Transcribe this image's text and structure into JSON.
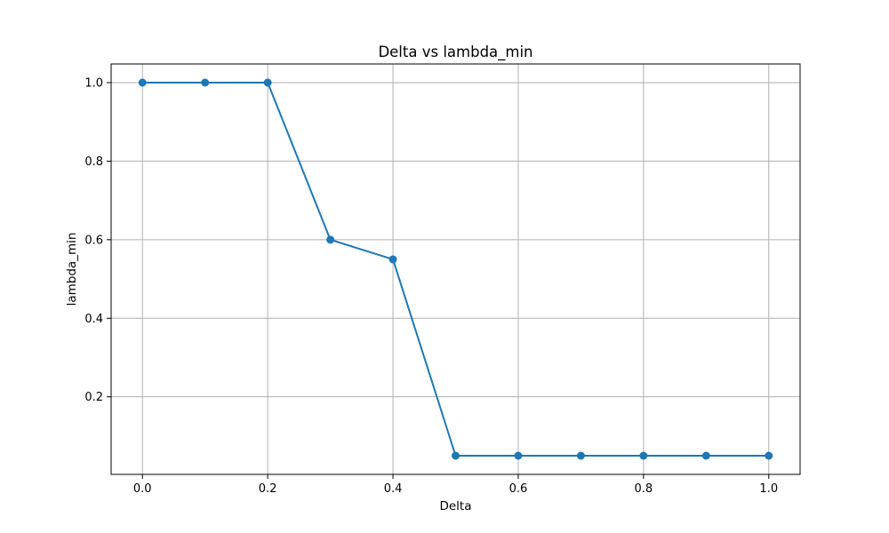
{
  "chart_data": {
    "type": "line",
    "title": "Delta vs lambda_min",
    "xlabel": "Delta",
    "ylabel": "lambda_min",
    "xlim": [
      -0.05,
      1.05
    ],
    "ylim": [
      0.0025,
      1.0475
    ],
    "xticks": [
      0.0,
      0.2,
      0.4,
      0.6,
      0.8,
      1.0
    ],
    "xtick_labels": [
      "0.0",
      "0.2",
      "0.4",
      "0.6",
      "0.8",
      "1.0"
    ],
    "yticks": [
      0.2,
      0.4,
      0.6,
      0.8,
      1.0
    ],
    "ytick_labels": [
      "0.2",
      "0.4",
      "0.6",
      "0.8",
      "1.0"
    ],
    "grid": true,
    "series": [
      {
        "color": "#1f77b4",
        "marker": "circle",
        "x": [
          0.0,
          0.1,
          0.2,
          0.3,
          0.4,
          0.5,
          0.6,
          0.7,
          0.8,
          0.9,
          1.0
        ],
        "y": [
          1.0,
          1.0,
          1.0,
          0.6,
          0.55,
          0.05,
          0.05,
          0.05,
          0.05,
          0.05,
          0.05
        ]
      }
    ]
  }
}
